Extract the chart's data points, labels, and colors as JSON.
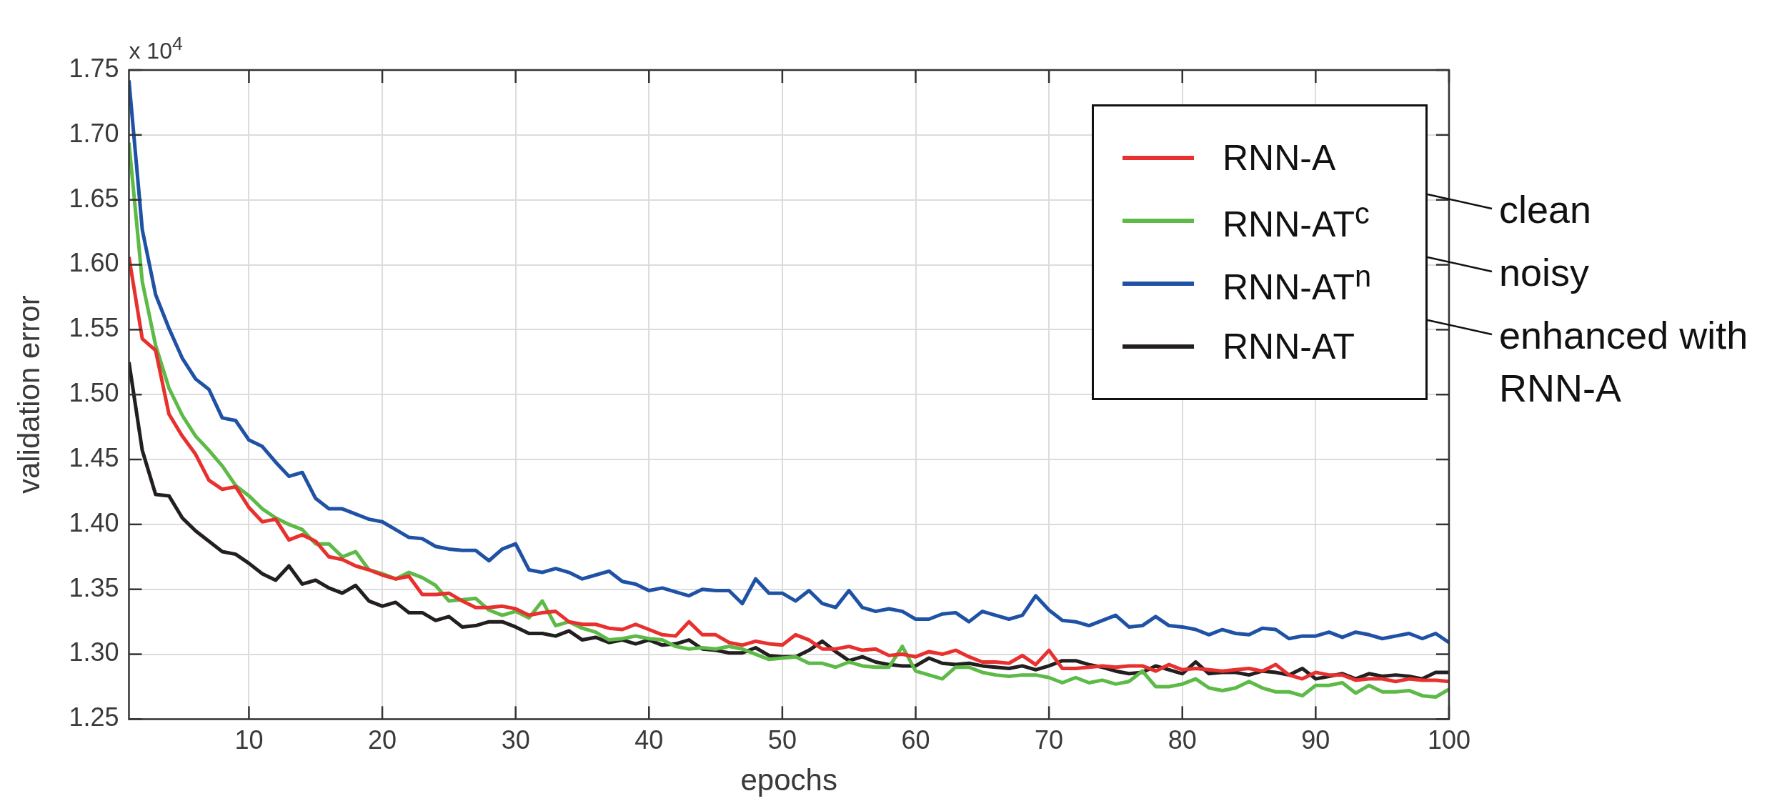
{
  "chart_data": {
    "type": "line",
    "xlabel": "epochs",
    "ylabel": "validation error",
    "x": [
      1,
      2,
      3,
      4,
      5,
      6,
      7,
      8,
      9,
      10,
      11,
      12,
      13,
      14,
      15,
      16,
      17,
      18,
      19,
      20,
      21,
      22,
      23,
      24,
      25,
      26,
      27,
      28,
      29,
      30,
      31,
      32,
      33,
      34,
      35,
      36,
      37,
      38,
      39,
      40,
      41,
      42,
      43,
      44,
      45,
      46,
      47,
      48,
      49,
      50,
      51,
      52,
      53,
      54,
      55,
      56,
      57,
      58,
      59,
      60,
      61,
      62,
      63,
      64,
      65,
      66,
      67,
      68,
      69,
      70,
      71,
      72,
      73,
      74,
      75,
      76,
      77,
      78,
      79,
      80,
      81,
      82,
      83,
      84,
      85,
      86,
      87,
      88,
      89,
      90,
      91,
      92,
      93,
      94,
      95,
      96,
      97,
      98,
      99,
      100
    ],
    "series": [
      {
        "name": "RNN-A",
        "color": "#e8302e",
        "values": [
          1.606,
          1.543,
          1.534,
          1.485,
          1.468,
          1.454,
          1.434,
          1.427,
          1.429,
          1.413,
          1.402,
          1.404,
          1.388,
          1.392,
          1.387,
          1.375,
          1.373,
          1.368,
          1.365,
          1.361,
          1.358,
          1.36,
          1.346,
          1.346,
          1.347,
          1.341,
          1.336,
          1.336,
          1.337,
          1.335,
          1.33,
          1.332,
          1.333,
          1.325,
          1.323,
          1.323,
          1.32,
          1.319,
          1.323,
          1.319,
          1.315,
          1.314,
          1.325,
          1.315,
          1.315,
          1.309,
          1.307,
          1.31,
          1.308,
          1.307,
          1.315,
          1.311,
          1.304,
          1.304,
          1.306,
          1.303,
          1.304,
          1.299,
          1.3,
          1.298,
          1.302,
          1.3,
          1.303,
          1.298,
          1.294,
          1.294,
          1.293,
          1.299,
          1.292,
          1.303,
          1.289,
          1.289,
          1.29,
          1.291,
          1.29,
          1.291,
          1.291,
          1.287,
          1.292,
          1.288,
          1.289,
          1.288,
          1.287,
          1.288,
          1.289,
          1.287,
          1.292,
          1.284,
          1.281,
          1.286,
          1.284,
          1.284,
          1.28,
          1.281,
          1.281,
          1.279,
          1.281,
          1.28,
          1.28,
          1.279
        ]
      },
      {
        "name": "RNN-AT$^{c}$",
        "color": "#5dba47",
        "values": [
          1.694,
          1.587,
          1.538,
          1.505,
          1.484,
          1.468,
          1.457,
          1.445,
          1.43,
          1.422,
          1.412,
          1.405,
          1.4,
          1.396,
          1.385,
          1.385,
          1.375,
          1.379,
          1.365,
          1.362,
          1.358,
          1.363,
          1.359,
          1.353,
          1.341,
          1.342,
          1.343,
          1.334,
          1.33,
          1.333,
          1.328,
          1.341,
          1.322,
          1.325,
          1.32,
          1.317,
          1.311,
          1.312,
          1.314,
          1.312,
          1.311,
          1.306,
          1.304,
          1.305,
          1.304,
          1.306,
          1.304,
          1.3,
          1.296,
          1.297,
          1.298,
          1.293,
          1.293,
          1.29,
          1.294,
          1.291,
          1.29,
          1.29,
          1.306,
          1.287,
          1.284,
          1.281,
          1.29,
          1.29,
          1.286,
          1.284,
          1.283,
          1.284,
          1.284,
          1.282,
          1.278,
          1.282,
          1.278,
          1.28,
          1.277,
          1.279,
          1.287,
          1.275,
          1.275,
          1.277,
          1.281,
          1.274,
          1.272,
          1.274,
          1.279,
          1.274,
          1.271,
          1.271,
          1.268,
          1.276,
          1.276,
          1.278,
          1.27,
          1.276,
          1.271,
          1.271,
          1.272,
          1.268,
          1.267,
          1.273
        ]
      },
      {
        "name": "RNN-AT$^{n}$",
        "color": "#1f52a5",
        "values": [
          1.742,
          1.627,
          1.577,
          1.551,
          1.528,
          1.512,
          1.504,
          1.482,
          1.48,
          1.465,
          1.46,
          1.448,
          1.437,
          1.44,
          1.42,
          1.412,
          1.412,
          1.408,
          1.404,
          1.402,
          1.396,
          1.39,
          1.389,
          1.383,
          1.381,
          1.38,
          1.38,
          1.372,
          1.381,
          1.385,
          1.365,
          1.363,
          1.366,
          1.363,
          1.358,
          1.361,
          1.364,
          1.356,
          1.354,
          1.349,
          1.351,
          1.348,
          1.345,
          1.35,
          1.349,
          1.349,
          1.339,
          1.358,
          1.347,
          1.347,
          1.341,
          1.349,
          1.339,
          1.336,
          1.349,
          1.336,
          1.333,
          1.335,
          1.333,
          1.327,
          1.327,
          1.331,
          1.332,
          1.325,
          1.333,
          1.33,
          1.327,
          1.33,
          1.345,
          1.334,
          1.326,
          1.325,
          1.322,
          1.326,
          1.33,
          1.321,
          1.322,
          1.329,
          1.322,
          1.321,
          1.319,
          1.315,
          1.319,
          1.316,
          1.315,
          1.32,
          1.319,
          1.312,
          1.314,
          1.314,
          1.317,
          1.313,
          1.317,
          1.315,
          1.312,
          1.314,
          1.316,
          1.312,
          1.316,
          1.309
        ]
      },
      {
        "name": "RNN-AT",
        "color": "#231f20",
        "values": [
          1.525,
          1.457,
          1.423,
          1.422,
          1.405,
          1.395,
          1.387,
          1.379,
          1.377,
          1.37,
          1.362,
          1.357,
          1.368,
          1.354,
          1.357,
          1.351,
          1.347,
          1.353,
          1.341,
          1.337,
          1.34,
          1.332,
          1.332,
          1.326,
          1.329,
          1.321,
          1.322,
          1.325,
          1.325,
          1.321,
          1.316,
          1.316,
          1.314,
          1.318,
          1.311,
          1.313,
          1.309,
          1.311,
          1.308,
          1.311,
          1.307,
          1.308,
          1.311,
          1.304,
          1.303,
          1.301,
          1.301,
          1.305,
          1.299,
          1.298,
          1.298,
          1.303,
          1.31,
          1.302,
          1.295,
          1.298,
          1.294,
          1.292,
          1.291,
          1.291,
          1.297,
          1.293,
          1.292,
          1.293,
          1.291,
          1.29,
          1.289,
          1.291,
          1.288,
          1.291,
          1.295,
          1.295,
          1.292,
          1.29,
          1.287,
          1.285,
          1.286,
          1.291,
          1.288,
          1.285,
          1.294,
          1.285,
          1.286,
          1.286,
          1.284,
          1.287,
          1.286,
          1.284,
          1.289,
          1.281,
          1.283,
          1.285,
          1.281,
          1.285,
          1.283,
          1.284,
          1.283,
          1.281,
          1.286,
          1.286
        ]
      }
    ],
    "xlim": [
      1,
      100
    ],
    "xticks": [
      10,
      20,
      30,
      40,
      50,
      60,
      70,
      80,
      90,
      100
    ],
    "ylim": [
      1.25,
      1.75
    ],
    "yticks": [
      {
        "value": 1.25,
        "label": "1.25"
      },
      {
        "value": 1.3,
        "label": "1.30"
      },
      {
        "value": 1.35,
        "label": "1.35"
      },
      {
        "value": 1.4,
        "label": "1.40"
      },
      {
        "value": 1.45,
        "label": "1.45"
      },
      {
        "value": 1.5,
        "label": "1.50"
      },
      {
        "value": 1.55,
        "label": "1.55"
      },
      {
        "value": 1.6,
        "label": "1.60"
      },
      {
        "value": 1.65,
        "label": "1.65"
      },
      {
        "value": 1.7,
        "label": "1.70"
      },
      {
        "value": 1.75,
        "label": "1.75"
      }
    ],
    "grid": true,
    "legend": "top right",
    "marker": "none",
    "line_style": "solid",
    "annotations": [
      "x 10$^{4}$",
      "clean",
      "noisy",
      "enhanced with RNN-A"
    ]
  }
}
